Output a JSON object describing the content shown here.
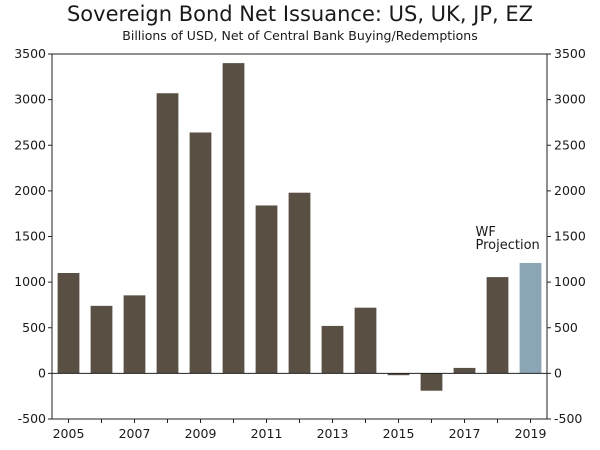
{
  "chart_data": {
    "type": "bar",
    "title": "Sovereign Bond Net Issuance: US, UK, JP, EZ",
    "subtitle": "Billions of USD, Net of Central Bank Buying/Redemptions",
    "categories": [
      "2005",
      "2006",
      "2007",
      "2008",
      "2009",
      "2010",
      "2011",
      "2012",
      "2013",
      "2014",
      "2015",
      "2016",
      "2017",
      "2018",
      "2019"
    ],
    "values": [
      1100,
      740,
      855,
      3070,
      2640,
      3400,
      1840,
      1980,
      520,
      720,
      -20,
      -190,
      60,
      1055,
      1210
    ],
    "projection_index": 14,
    "annotation": [
      "WF",
      "Projection"
    ],
    "x_tick_labels": [
      "2005",
      "2007",
      "2009",
      "2011",
      "2013",
      "2015",
      "2017",
      "2019"
    ],
    "ylim": [
      -500,
      3500
    ],
    "yticks": [
      -500,
      0,
      500,
      1000,
      1500,
      2000,
      2500,
      3000,
      3500
    ],
    "xlabel": "",
    "ylabel": "",
    "colors": {
      "bar": "#5a4f43",
      "projection": "#8aa5b5",
      "axis": "#222222"
    }
  }
}
